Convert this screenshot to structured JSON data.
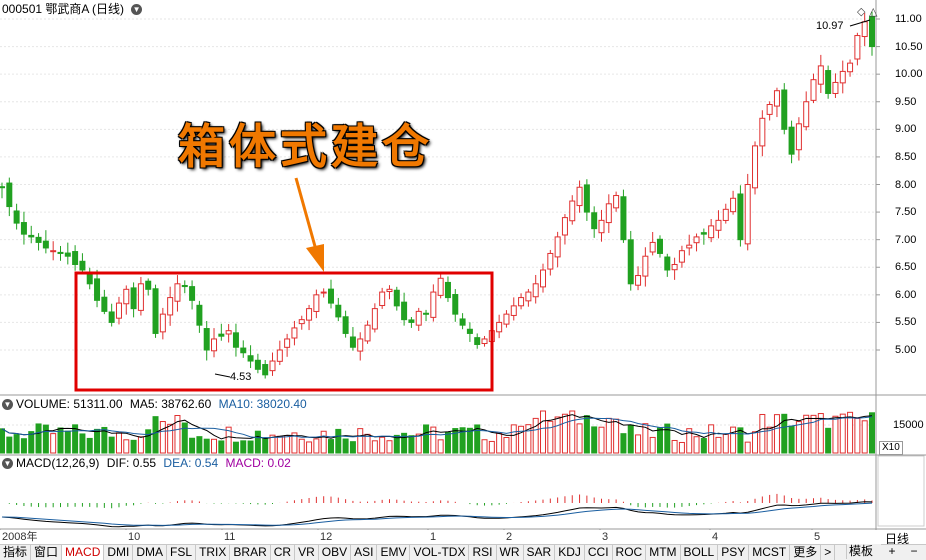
{
  "title_bar": {
    "code_name": "000501 鄂武商A (日线)",
    "dropdown_icon": "chevron-down-icon"
  },
  "chart_data": [
    {
      "type": "candlestick",
      "title": "000501 鄂武商A (日线)",
      "ylim": [
        4.3,
        11.2
      ],
      "yticks": [
        "11.00",
        "10.50",
        "10.00",
        "9.50",
        "9.00",
        "8.50",
        "8.00",
        "7.50",
        "7.00",
        "6.50",
        "6.00",
        "5.50",
        "5.00"
      ],
      "annotations": {
        "high": "10.97",
        "low": "4.53"
      },
      "overlay_text": "箱体式建仓",
      "closes": [
        7.95,
        7.6,
        7.3,
        7.1,
        7.05,
        6.95,
        6.85,
        6.8,
        6.75,
        6.7,
        6.55,
        6.45,
        6.2,
        5.9,
        5.7,
        5.5,
        5.85,
        6.1,
        5.75,
        6.2,
        6.1,
        5.3,
        5.65,
        5.95,
        6.2,
        6.15,
        5.9,
        5.45,
        5.0,
        5.2,
        5.25,
        5.35,
        5.05,
        4.95,
        4.8,
        4.65,
        4.55,
        4.8,
        5.0,
        5.2,
        5.4,
        5.55,
        5.75,
        6.0,
        6.05,
        5.85,
        5.6,
        5.3,
        5.05,
        5.2,
        5.45,
        5.75,
        6.05,
        6.1,
        5.8,
        5.55,
        5.5,
        5.7,
        5.65,
        6.05,
        6.3,
        5.95,
        5.65,
        5.45,
        5.3,
        5.1,
        5.2,
        5.35,
        5.5,
        5.65,
        5.8,
        5.95,
        6.05,
        6.2,
        6.45,
        6.75,
        7.05,
        7.4,
        7.7,
        7.95,
        7.5,
        7.2,
        7.35,
        7.65,
        7.8,
        7.0,
        6.2,
        6.35,
        6.7,
        6.95,
        6.75,
        6.45,
        6.55,
        6.8,
        6.9,
        7.05,
        7.1,
        7.25,
        7.35,
        7.55,
        7.75,
        7.0,
        8.0,
        8.7,
        9.2,
        9.45,
        9.7,
        9.0,
        8.55,
        9.1,
        9.5,
        9.9,
        10.15,
        9.65,
        9.85,
        10.05,
        10.2,
        10.7,
        10.95,
        10.5
      ],
      "volume": {
        "label": "VOLUME: 51311.00",
        "ma5": "MA5: 38762.60",
        "ma10": "MA10: 38020.40",
        "ytick": "15000",
        "unit": "X10"
      },
      "macd": {
        "label": "MACD(12,26,9)",
        "dif": "DIF: 0.55",
        "dea": "DEA: 0.54",
        "macd": "MACD: 0.02"
      }
    }
  ],
  "date_axis": [
    "2008年",
    "10",
    "11",
    "12",
    "1",
    "2",
    "3",
    "4",
    "5"
  ],
  "right_panel": {
    "period_label": "日线"
  },
  "tabs": [
    "指标",
    "窗口",
    "MACD",
    "DMI",
    "DMA",
    "FSL",
    "TRIX",
    "BRAR",
    "CR",
    "VR",
    "OBV",
    "ASI",
    "EMV",
    "VOL-TDX",
    "RSI",
    "WR",
    "SAR",
    "KDJ",
    "CCI",
    "ROC",
    "MTM",
    "BOLL",
    "PSY",
    "MCST",
    "更多",
    ">"
  ],
  "active_tab": "MACD",
  "bottom_controls": {
    "template": "模板",
    "plus": "+",
    "minus": "−"
  },
  "colors": {
    "up": "#e03030",
    "down": "#21a121",
    "box": "#e00000",
    "dif": "#000000",
    "dea": "#1a5ea0",
    "ma5": "#000000",
    "ma10": "#1a5ea0",
    "macd_label": "#a000a0"
  }
}
